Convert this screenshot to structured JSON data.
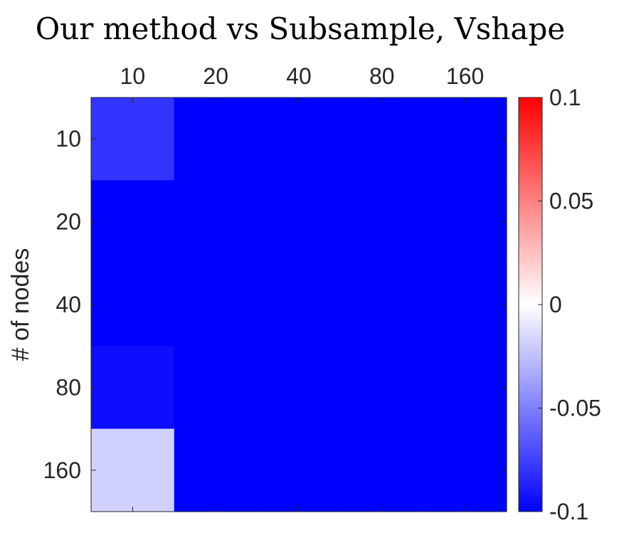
{
  "chart_data": {
    "type": "heatmap",
    "title": "Our method vs Subsample, Vshape",
    "xlabel": "",
    "ylabel": "# of nodes",
    "x_categories": [
      "10",
      "20",
      "40",
      "80",
      "160"
    ],
    "y_categories": [
      "10",
      "20",
      "40",
      "80",
      "160"
    ],
    "values": [
      [
        -0.08,
        -0.1,
        -0.1,
        -0.1,
        -0.1
      ],
      [
        -0.1,
        -0.1,
        -0.1,
        -0.1,
        -0.1
      ],
      [
        -0.1,
        -0.1,
        -0.1,
        -0.1,
        -0.1
      ],
      [
        -0.095,
        -0.1,
        -0.1,
        -0.1,
        -0.1
      ],
      [
        -0.018,
        -0.1,
        -0.1,
        -0.1,
        -0.1
      ]
    ],
    "x_axis_position": "top",
    "colorbar": {
      "range": [
        -0.1,
        0.1
      ],
      "ticks": [
        "0.1",
        "0.05",
        "0",
        "-0.05",
        "-0.1"
      ],
      "tick_values": [
        0.1,
        0.05,
        0,
        -0.05,
        -0.1
      ],
      "colormap": [
        "#0000ff",
        "#ffffff",
        "#ff0000"
      ]
    },
    "grid": false
  }
}
